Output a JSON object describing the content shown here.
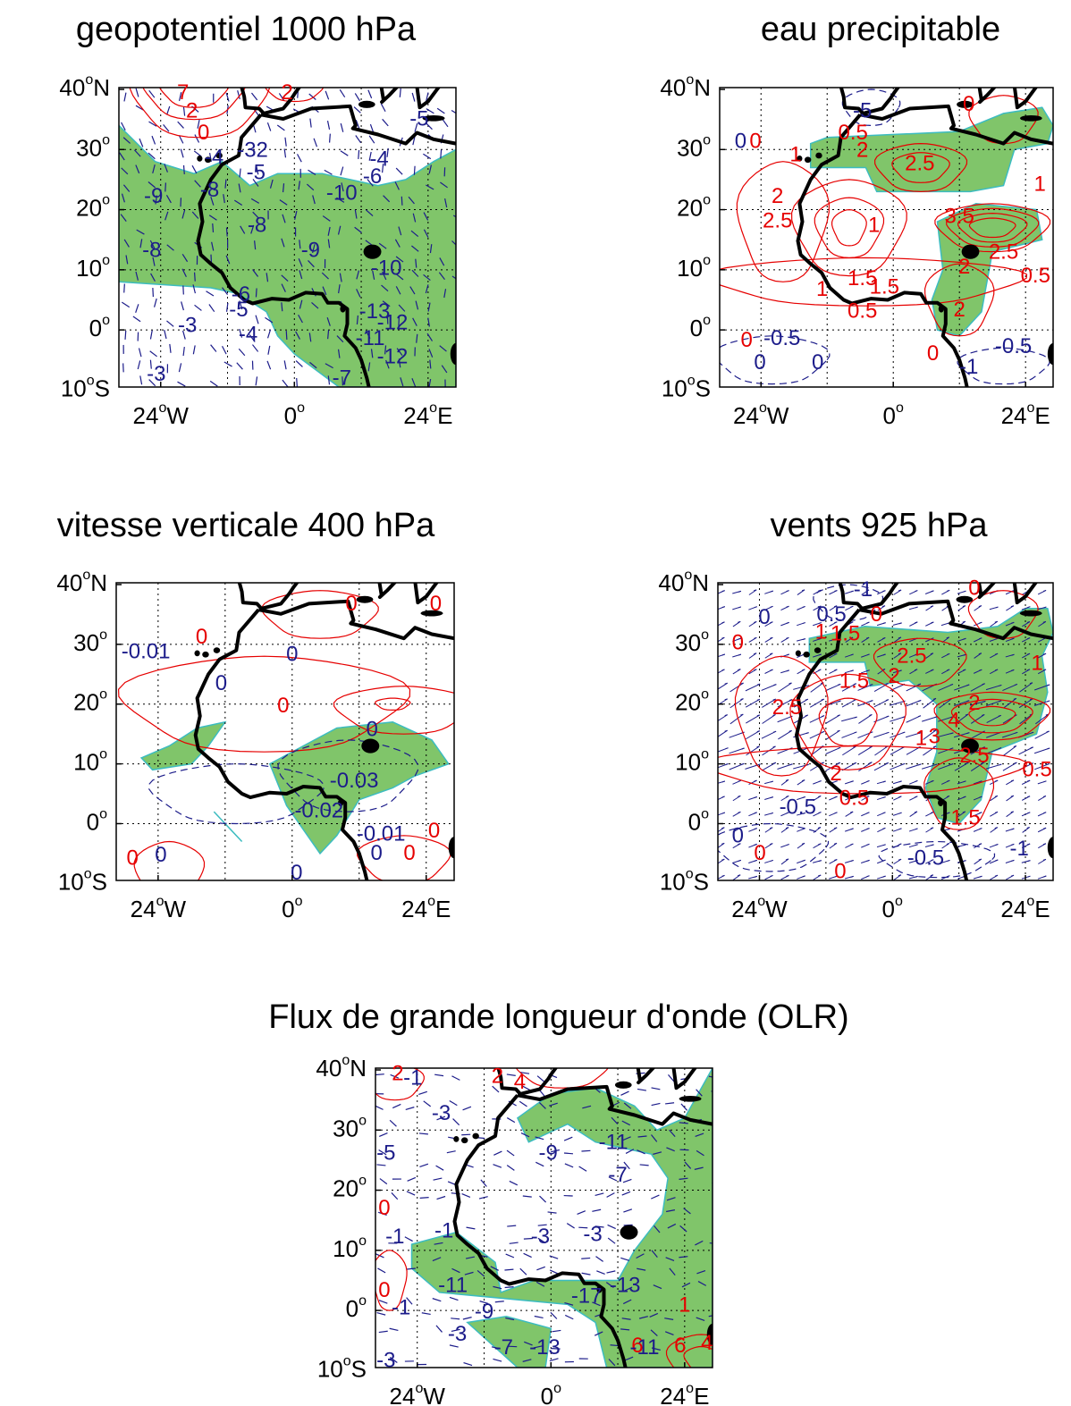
{
  "lat_ticks": [
    {
      "value": 40,
      "label": "40",
      "unit": "o",
      "hemisphere": "N"
    },
    {
      "value": 30,
      "label": "30",
      "unit": "o"
    },
    {
      "value": 20,
      "label": "20",
      "unit": "o"
    },
    {
      "value": 10,
      "label": "10",
      "unit": "o"
    },
    {
      "value": 0,
      "label": "0",
      "unit": "o"
    },
    {
      "value": -10,
      "label": "10",
      "unit": "o",
      "hemisphere": "S"
    }
  ],
  "lon_ticks": [
    {
      "value": -24,
      "label": "24",
      "unit": "o",
      "hemisphere": "W"
    },
    {
      "value": 0,
      "label": "0",
      "unit": "o"
    },
    {
      "value": 24,
      "label": "24",
      "unit": "o",
      "hemisphere": "E"
    }
  ],
  "panels": [
    {
      "title": "geopotentiel 1000 hPa",
      "red_labels": [
        "7",
        "2",
        "2",
        "0"
      ],
      "blue_labels": [
        "-9",
        "-8",
        "-8",
        "-8",
        "-9",
        "-10",
        "-6",
        "-4",
        "-10",
        "-6",
        "-5",
        "-4",
        "-3",
        "-3",
        "-13",
        "-12",
        "-11",
        "-12",
        "-7",
        "-4",
        "-32",
        "-5",
        "-5"
      ]
    },
    {
      "title": "eau precipitable",
      "red_labels": [
        "0",
        "1",
        "0.5",
        "2",
        "2.5",
        "2",
        "2.5",
        "1",
        "3.5",
        "1.5",
        "1.5",
        "2",
        "2.5",
        "0.5",
        "1",
        "0.5",
        "2",
        "0",
        "0",
        "1",
        "0"
      ],
      "blue_labels": [
        "0",
        "-0.5",
        "0",
        "0",
        "-1",
        "-0.5",
        "-5"
      ]
    },
    {
      "title": "vitesse verticale 400 hPa",
      "red_labels": [
        "0",
        "0",
        "0",
        "0",
        "0",
        "0",
        "0"
      ],
      "blue_labels": [
        "-0.01",
        "0",
        "0",
        "0",
        "-0.03",
        "-0.02",
        "-0.01",
        "0",
        "0",
        "0"
      ]
    },
    {
      "title": "vents  925 hPa",
      "red_labels": [
        "0",
        "1",
        "1.5",
        "0",
        "2.5",
        "1.5",
        "2",
        "2.5",
        "2",
        "4",
        "1",
        "3",
        "2.5",
        "0.5",
        "0.5",
        "2",
        "1.5",
        "0",
        "0",
        "0",
        "1"
      ],
      "blue_labels": [
        "0",
        "0.5",
        "-1",
        "-0.5",
        "0",
        "-0.5",
        "-1"
      ]
    },
    {
      "title": "Flux de grande longueur d'onde (OLR)",
      "red_labels": [
        "2",
        "2",
        "4",
        "0",
        "0",
        "1",
        "6",
        "6",
        "4"
      ],
      "blue_labels": [
        "-1",
        "-3",
        "-5",
        "-9",
        "-11",
        "-7",
        "-1",
        "-1",
        "-3",
        "-3",
        "-11",
        "-9",
        "-17",
        "-13",
        "-1",
        "-7",
        "-13",
        "-11",
        "-3",
        "-3"
      ]
    }
  ]
}
